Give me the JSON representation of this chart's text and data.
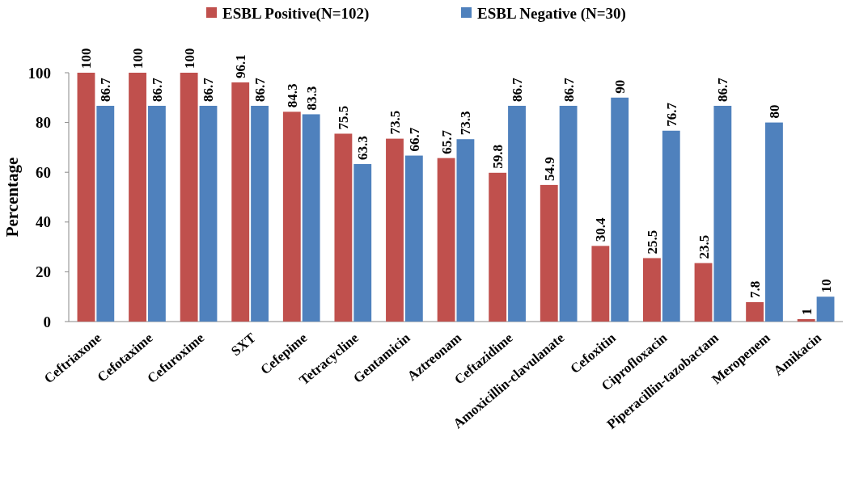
{
  "chart_data": {
    "type": "bar",
    "ylabel": "Percentage",
    "categories": [
      "Ceftriaxone",
      "Cefotaxime",
      "Cefuroxime",
      "SXT",
      "Cefepime",
      "Tetracycline",
      "Gentamicin",
      "Aztreonam",
      "Ceftazidime",
      "Amoxicillin-clavulanate",
      "Cefoxitin",
      "Ciprofloxacin",
      "Piperacillin-tazobactam",
      "Meropenem",
      "Amikacin"
    ],
    "series": [
      {
        "name": "ESBL Positive(N=102)",
        "color": "#c0504d",
        "values": [
          100,
          100,
          100,
          96.1,
          84.3,
          75.5,
          73.5,
          65.7,
          59.8,
          54.9,
          30.4,
          25.5,
          23.5,
          7.8,
          1
        ]
      },
      {
        "name": "ESBL Negative (N=30)",
        "color": "#4f81bd",
        "values": [
          86.7,
          86.7,
          86.7,
          86.7,
          83.3,
          63.3,
          66.7,
          73.3,
          86.7,
          86.7,
          90,
          76.7,
          86.7,
          80,
          10
        ]
      }
    ],
    "ylim": [
      0,
      100
    ],
    "yticks": [
      0,
      20,
      40,
      60,
      80,
      100
    ],
    "grid": false,
    "legend": "top",
    "data_labels": true
  }
}
